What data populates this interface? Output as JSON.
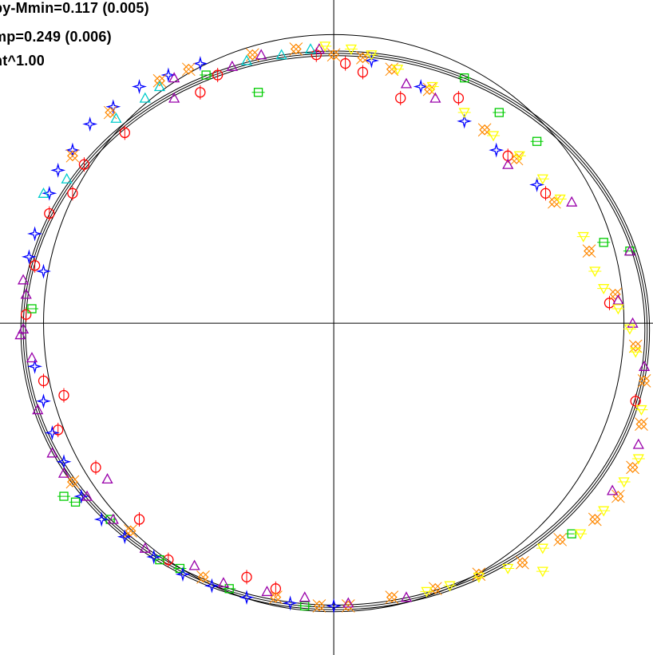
{
  "annotations": {
    "line1": "py-Mmin=0.117 (0.005)",
    "line2": "mp=0.249 (0.006)",
    "line3": "nt^1.00"
  },
  "chart_data": {
    "type": "scatter",
    "grid": false,
    "xlim": [
      -1.15,
      1.1
    ],
    "ylim": [
      -1.15,
      1.12
    ],
    "reference_circle": {
      "radius": 1.0
    },
    "fit_curve": {
      "x_left": -1.07,
      "x_right": 1.08,
      "y_top": 0.935,
      "y_bottom": -0.985,
      "bands": 3
    },
    "colors": [
      "#ff0000",
      "#00cc00",
      "#0000ff",
      "#ff8800",
      "#9900aa",
      "#00cccc",
      "#ffff00"
    ],
    "series": [
      {
        "marker": "circle",
        "color": "#ff0000",
        "points": [
          [
            -1.06,
            0.03
          ],
          [
            -1.03,
            0.2
          ],
          [
            -1.0,
            -0.2
          ],
          [
            -0.98,
            0.38
          ],
          [
            -0.95,
            -0.37
          ],
          [
            -0.9,
            0.45
          ],
          [
            -0.86,
            0.55
          ],
          [
            -0.82,
            -0.5
          ],
          [
            -0.72,
            0.66
          ],
          [
            -0.67,
            -0.68
          ],
          [
            -0.57,
            -0.82
          ],
          [
            -0.46,
            0.8
          ],
          [
            -0.4,
            0.86
          ],
          [
            -0.3,
            -0.88
          ],
          [
            -0.2,
            -0.92
          ],
          [
            -0.06,
            0.93
          ],
          [
            0.04,
            0.9
          ],
          [
            0.1,
            0.87
          ],
          [
            0.23,
            0.78
          ],
          [
            0.43,
            0.78
          ],
          [
            0.6,
            0.58
          ],
          [
            0.73,
            0.45
          ],
          [
            0.95,
            0.07
          ],
          [
            1.04,
            -0.27
          ],
          [
            -0.93,
            -0.25
          ]
        ]
      },
      {
        "marker": "square",
        "color": "#00cc00",
        "points": [
          [
            -1.04,
            0.05
          ],
          [
            -0.93,
            -0.6
          ],
          [
            -0.89,
            -0.62
          ],
          [
            -0.77,
            -0.68
          ],
          [
            -0.6,
            -0.82
          ],
          [
            -0.53,
            -0.85
          ],
          [
            -0.44,
            0.86
          ],
          [
            -0.36,
            -0.92
          ],
          [
            -0.26,
            0.8
          ],
          [
            -0.1,
            -0.98
          ],
          [
            0.45,
            0.85
          ],
          [
            0.57,
            0.73
          ],
          [
            0.7,
            0.63
          ],
          [
            0.82,
            -0.73
          ],
          [
            0.93,
            0.28
          ],
          [
            1.02,
            0.25
          ]
        ]
      },
      {
        "marker": "star",
        "color": "#0000ff",
        "points": [
          [
            -1.05,
            0.23
          ],
          [
            -1.03,
            0.31
          ],
          [
            -1.0,
            0.18
          ],
          [
            -0.98,
            0.45
          ],
          [
            -0.95,
            0.53
          ],
          [
            -0.9,
            0.6
          ],
          [
            -0.84,
            0.69
          ],
          [
            -0.76,
            0.75
          ],
          [
            -0.67,
            0.82
          ],
          [
            -0.57,
            0.86
          ],
          [
            -0.46,
            0.9
          ],
          [
            -1.03,
            -0.15
          ],
          [
            -1.0,
            -0.27
          ],
          [
            -0.97,
            -0.38
          ],
          [
            -0.93,
            -0.48
          ],
          [
            -0.87,
            -0.6
          ],
          [
            -0.8,
            -0.68
          ],
          [
            -0.72,
            -0.74
          ],
          [
            -0.62,
            -0.81
          ],
          [
            -0.52,
            -0.87
          ],
          [
            -0.42,
            -0.91
          ],
          [
            -0.3,
            -0.95
          ],
          [
            -0.15,
            -0.97
          ],
          [
            0.0,
            -0.98
          ],
          [
            0.13,
            0.91
          ],
          [
            0.3,
            0.82
          ],
          [
            0.45,
            0.7
          ],
          [
            0.56,
            0.6
          ],
          [
            0.7,
            0.48
          ]
        ]
      },
      {
        "marker": "diamond-cross",
        "color": "#ff8800",
        "points": [
          [
            -0.9,
            0.58
          ],
          [
            -0.77,
            0.73
          ],
          [
            -0.6,
            0.84
          ],
          [
            -0.5,
            0.88
          ],
          [
            -0.28,
            0.93
          ],
          [
            -0.13,
            0.95
          ],
          [
            0.0,
            0.93
          ],
          [
            0.1,
            0.92
          ],
          [
            0.2,
            0.88
          ],
          [
            0.33,
            0.81
          ],
          [
            0.52,
            0.67
          ],
          [
            0.63,
            0.57
          ],
          [
            0.76,
            0.42
          ],
          [
            0.88,
            0.25
          ],
          [
            0.97,
            0.1
          ],
          [
            1.04,
            -0.08
          ],
          [
            1.07,
            -0.2
          ],
          [
            1.06,
            -0.35
          ],
          [
            1.03,
            -0.5
          ],
          [
            0.98,
            -0.6
          ],
          [
            0.9,
            -0.68
          ],
          [
            0.78,
            -0.75
          ],
          [
            0.65,
            -0.83
          ],
          [
            0.5,
            -0.87
          ],
          [
            0.35,
            -0.92
          ],
          [
            0.2,
            -0.95
          ],
          [
            0.05,
            -0.98
          ],
          [
            -0.05,
            -0.98
          ],
          [
            -0.2,
            -0.95
          ],
          [
            -0.45,
            -0.88
          ],
          [
            -0.7,
            -0.72
          ],
          [
            -0.9,
            -0.55
          ]
        ]
      },
      {
        "marker": "triangle",
        "color": "#9900aa",
        "points": [
          [
            -1.07,
            0.15
          ],
          [
            -1.07,
            -0.02
          ],
          [
            -1.06,
            0.1
          ],
          [
            -1.04,
            -0.12
          ],
          [
            -1.02,
            -0.3
          ],
          [
            -0.97,
            -0.45
          ],
          [
            -0.93,
            -0.52
          ],
          [
            -0.85,
            -0.6
          ],
          [
            -0.78,
            -0.54
          ],
          [
            -0.76,
            -0.68
          ],
          [
            -0.65,
            -0.78
          ],
          [
            -0.55,
            0.78
          ],
          [
            -0.48,
            -0.84
          ],
          [
            -0.38,
            -0.9
          ],
          [
            -0.23,
            -0.93
          ],
          [
            -0.1,
            -0.95
          ],
          [
            0.05,
            -0.97
          ],
          [
            0.25,
            -0.95
          ],
          [
            -0.55,
            0.85
          ],
          [
            -0.35,
            0.89
          ],
          [
            -0.25,
            0.93
          ],
          [
            -0.05,
            0.95
          ],
          [
            0.25,
            0.83
          ],
          [
            0.35,
            0.78
          ],
          [
            0.6,
            0.55
          ],
          [
            0.82,
            0.42
          ],
          [
            0.98,
            0.08
          ],
          [
            1.03,
            0.0
          ],
          [
            1.07,
            -0.15
          ],
          [
            1.05,
            -0.42
          ],
          [
            0.96,
            -0.58
          ],
          [
            1.02,
            0.25
          ],
          [
            -1.08,
            -0.04
          ]
        ]
      },
      {
        "marker": "triangle",
        "color": "#00cccc",
        "points": [
          [
            -1.0,
            0.45
          ],
          [
            -0.92,
            0.5
          ],
          [
            -0.75,
            0.71
          ],
          [
            -0.65,
            0.78
          ],
          [
            -0.6,
            0.82
          ],
          [
            -0.3,
            0.91
          ],
          [
            -0.18,
            0.93
          ],
          [
            -0.08,
            0.95
          ]
        ]
      },
      {
        "marker": "triangle-down",
        "color": "#ffff00",
        "points": [
          [
            -0.03,
            0.96
          ],
          [
            0.06,
            0.95
          ],
          [
            0.13,
            0.93
          ],
          [
            0.22,
            0.88
          ],
          [
            0.34,
            0.82
          ],
          [
            0.45,
            0.73
          ],
          [
            0.55,
            0.65
          ],
          [
            0.64,
            0.58
          ],
          [
            0.72,
            0.5
          ],
          [
            0.78,
            0.43
          ],
          [
            0.86,
            0.3
          ],
          [
            0.9,
            0.18
          ],
          [
            0.93,
            0.12
          ],
          [
            0.98,
            0.05
          ],
          [
            1.02,
            -0.02
          ],
          [
            1.04,
            -0.1
          ],
          [
            1.06,
            -0.3
          ],
          [
            1.05,
            -0.47
          ],
          [
            1.0,
            -0.55
          ],
          [
            0.93,
            -0.65
          ],
          [
            0.85,
            -0.73
          ],
          [
            0.72,
            -0.78
          ],
          [
            0.6,
            -0.85
          ],
          [
            0.5,
            -0.88
          ],
          [
            0.4,
            -0.91
          ],
          [
            0.32,
            -0.93
          ],
          [
            0.72,
            -0.86
          ]
        ]
      }
    ]
  }
}
